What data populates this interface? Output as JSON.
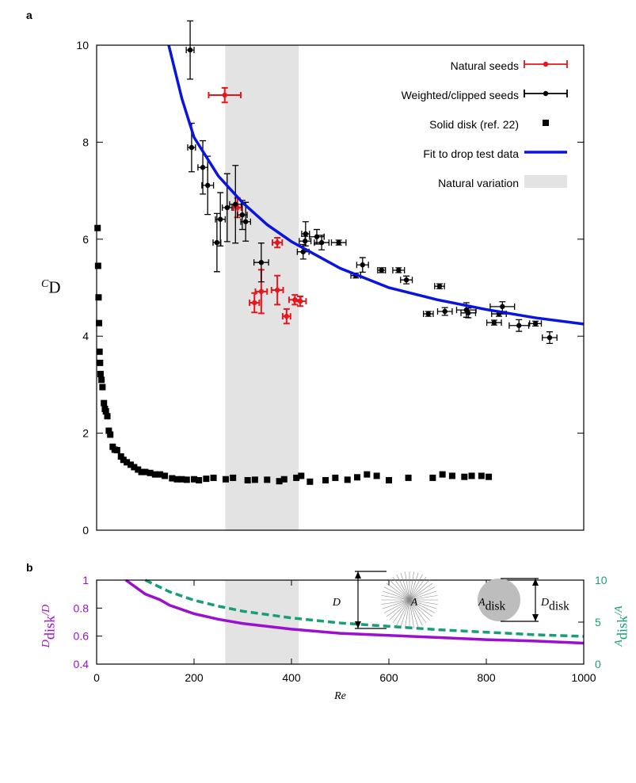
{
  "chart_data": [
    {
      "type": "scatter",
      "panel_label": "a",
      "ylabel": [
        "C",
        "D"
      ],
      "xlim": [
        0,
        1000
      ],
      "ylim": [
        0,
        10
      ],
      "yticks": [
        0,
        2,
        4,
        6,
        8,
        10
      ],
      "legend": "top-right",
      "series": [
        {
          "name": "Natural seeds",
          "kind": "errorbar",
          "color": "#e8151b",
          "x": [
            263,
            289,
            371,
            338,
            324,
            371,
            390,
            407,
            418
          ],
          "values": [
            8.97,
            6.65,
            5.93,
            4.92,
            4.69,
            4.95,
            4.41,
            4.75,
            4.72
          ],
          "xerr": [
            33,
            8,
            10,
            12,
            10,
            12,
            8,
            12,
            12
          ],
          "yerr": [
            0.15,
            0.2,
            0.1,
            0.45,
            0.2,
            0.3,
            0.15,
            0.1,
            0.1
          ]
        },
        {
          "name": "Weighted/clipped seeds",
          "kind": "errorbar",
          "color": "#000000",
          "x": [
            192,
            195,
            218,
            228,
            247,
            254,
            268,
            285,
            299,
            306,
            338,
            424,
            429,
            428,
            452,
            462,
            497,
            532,
            546,
            585,
            620,
            636,
            704,
            681,
            715,
            759,
            763,
            833,
            826,
            816,
            867,
            901,
            930
          ],
          "values": [
            9.9,
            7.89,
            7.48,
            7.11,
            5.93,
            6.41,
            6.65,
            6.72,
            6.5,
            6.36,
            5.52,
            5.74,
            6.11,
            5.96,
            6.05,
            5.93,
            5.93,
            5.25,
            5.47,
            5.36,
            5.36,
            5.16,
            5.03,
            4.46,
            4.51,
            4.54,
            4.48,
            4.61,
            4.46,
            4.28,
            4.22,
            4.26,
            3.97
          ],
          "xerr": [
            8,
            8,
            10,
            12,
            8,
            10,
            10,
            12,
            10,
            10,
            15,
            12,
            8,
            12,
            15,
            15,
            15,
            10,
            12,
            8,
            12,
            12,
            10,
            10,
            15,
            20,
            15,
            25,
            15,
            15,
            20,
            12,
            15
          ],
          "yerr": [
            0.6,
            0.5,
            0.55,
            0.6,
            0.6,
            0.55,
            0.7,
            0.8,
            0.3,
            0.4,
            0.4,
            0.15,
            0.25,
            0.1,
            0.15,
            0.15,
            0.05,
            0.05,
            0.15,
            0.05,
            0.05,
            0.08,
            0.05,
            0.05,
            0.08,
            0.15,
            0.1,
            0.1,
            0.05,
            0.05,
            0.12,
            0.05,
            0.12
          ]
        },
        {
          "name": "Solid disk (ref. 22)",
          "kind": "square",
          "color": "#000000",
          "x": [
            2,
            3,
            4,
            5,
            6,
            7,
            8,
            10,
            12,
            15,
            17,
            19,
            22,
            25,
            28,
            33,
            37,
            42,
            50,
            55,
            62,
            70,
            77,
            85,
            92,
            100,
            110,
            120,
            130,
            140,
            155,
            165,
            175,
            185,
            200,
            210,
            225,
            240,
            265,
            280,
            310,
            325,
            350,
            375,
            385,
            410,
            420,
            438,
            470,
            490,
            515,
            535,
            555,
            575,
            600,
            640,
            690,
            710,
            730,
            755,
            770,
            790,
            805
          ],
          "values": [
            6.23,
            5.45,
            4.8,
            4.27,
            3.68,
            3.45,
            3.22,
            3.1,
            2.95,
            2.62,
            2.5,
            2.45,
            2.35,
            2.05,
            1.97,
            1.72,
            1.66,
            1.65,
            1.52,
            1.45,
            1.4,
            1.35,
            1.3,
            1.25,
            1.2,
            1.2,
            1.18,
            1.15,
            1.15,
            1.12,
            1.07,
            1.05,
            1.05,
            1.04,
            1.05,
            1.03,
            1.06,
            1.08,
            1.05,
            1.08,
            1.03,
            1.04,
            1.04,
            1.01,
            1.05,
            1.08,
            1.12,
            1.0,
            1.03,
            1.08,
            1.04,
            1.09,
            1.15,
            1.12,
            1.03,
            1.08,
            1.08,
            1.15,
            1.12,
            1.1,
            1.12,
            1.12,
            1.1
          ]
        },
        {
          "name": "Fit to drop test data",
          "kind": "line",
          "color": "#0a14e0",
          "x": [
            148,
            175,
            200,
            250,
            300,
            350,
            400,
            500,
            600,
            700,
            800,
            900,
            1000
          ],
          "values": [
            10,
            8.9,
            8.1,
            7.3,
            6.75,
            6.3,
            5.95,
            5.4,
            5.0,
            4.75,
            4.55,
            4.38,
            4.25
          ]
        },
        {
          "name": "Natural variation",
          "kind": "band",
          "color": "#e3e3e3",
          "x": [
            264,
            415
          ]
        }
      ]
    },
    {
      "type": "line",
      "panel_label": "b",
      "xlabel": "Re",
      "ylabel": [
        "D",
        "disk",
        "/D"
      ],
      "y2label": [
        "A",
        "disk",
        "/A"
      ],
      "xlim": [
        0,
        1000
      ],
      "xticks": [
        0,
        200,
        400,
        600,
        800,
        1000
      ],
      "ylim": [
        0.4,
        1
      ],
      "yticks": [
        0.4,
        0.6,
        0.8,
        1
      ],
      "y2lim": [
        0,
        10
      ],
      "y2ticks": [
        0,
        5,
        10
      ],
      "shaded_range": [
        264,
        415
      ],
      "shaded_color": "#e3e3e3",
      "series": [
        {
          "color": "#9a0fd0",
          "x": [
            60,
            100,
            130,
            150,
            200,
            250,
            300,
            400,
            500,
            600,
            700,
            800,
            900,
            1000
          ],
          "values": [
            1.0,
            0.9,
            0.86,
            0.82,
            0.76,
            0.72,
            0.69,
            0.65,
            0.62,
            0.605,
            0.59,
            0.575,
            0.565,
            0.55
          ]
        },
        {
          "color": "#169e78",
          "axis": "y2",
          "dashed": true,
          "x": [
            100,
            150,
            200,
            250,
            300,
            400,
            500,
            600,
            700,
            800,
            900,
            1000
          ],
          "values": [
            10,
            8.6,
            7.6,
            6.9,
            6.3,
            5.5,
            4.9,
            4.5,
            4.1,
            3.8,
            3.5,
            3.3
          ]
        }
      ],
      "annotations": [
        [
          "D"
        ],
        [
          "A"
        ],
        [
          "A",
          "disk"
        ],
        [
          "D",
          "disk"
        ]
      ]
    }
  ]
}
